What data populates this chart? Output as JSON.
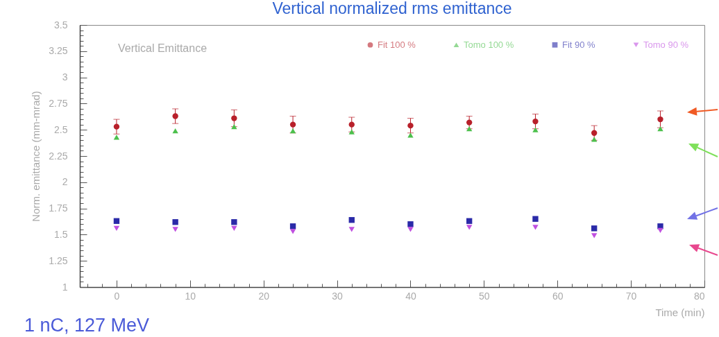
{
  "chart_data": {
    "type": "scatter",
    "title": "Vertical normalized rms emittance",
    "xlabel": "Time (min)",
    "ylabel": "Norm. emittance (mm-mrad)",
    "annotations": [
      "Vertical Emittance",
      "1 nC, 127 MeV"
    ],
    "x": [
      0,
      8,
      16,
      24,
      32,
      40,
      48,
      57,
      65,
      74
    ],
    "series": [
      {
        "name": "Fit 100 %",
        "color": "#b8202a",
        "marker": "circle",
        "values": [
          2.53,
          2.63,
          2.61,
          2.55,
          2.55,
          2.54,
          2.57,
          2.58,
          2.47,
          2.6
        ],
        "errors": [
          0.07,
          0.07,
          0.08,
          0.08,
          0.07,
          0.07,
          0.06,
          0.07,
          0.07,
          0.08
        ]
      },
      {
        "name": "Tomo 100 %",
        "color": "#4cc04c",
        "marker": "triangle",
        "values": [
          2.43,
          2.49,
          2.53,
          2.49,
          2.48,
          2.45,
          2.51,
          2.5,
          2.41,
          2.51
        ]
      },
      {
        "name": "Fit 90 %",
        "color": "#2a2aa8",
        "marker": "square",
        "values": [
          1.63,
          1.62,
          1.62,
          1.58,
          1.64,
          1.6,
          1.63,
          1.65,
          1.56,
          1.58
        ]
      },
      {
        "name": "Tomo 90 %",
        "color": "#c050e0",
        "marker": "triangle-down",
        "values": [
          1.56,
          1.55,
          1.56,
          1.53,
          1.55,
          1.55,
          1.57,
          1.57,
          1.49,
          1.54
        ]
      }
    ],
    "xlim": [
      -5,
      80
    ],
    "xticks": [
      {
        "value": -4,
        "label": null
      },
      {
        "value": -2,
        "label": null
      },
      0,
      {
        "value": 2,
        "label": null
      },
      {
        "value": 4,
        "label": null
      },
      {
        "value": 6,
        "label": null
      },
      {
        "value": 8,
        "label": null
      },
      10,
      {
        "value": 12,
        "label": null
      },
      {
        "value": 14,
        "label": null
      },
      {
        "value": 16,
        "label": null
      },
      {
        "value": 18,
        "label": null
      },
      20,
      {
        "value": 22,
        "label": null
      },
      {
        "value": 24,
        "label": null
      },
      {
        "value": 26,
        "label": null
      },
      {
        "value": 28,
        "label": null
      },
      30,
      {
        "value": 32,
        "label": null
      },
      {
        "value": 34,
        "label": null
      },
      {
        "value": 36,
        "label": null
      },
      {
        "value": 38,
        "label": null
      },
      40,
      {
        "value": 42,
        "label": null
      },
      {
        "value": 44,
        "label": null
      },
      {
        "value": 46,
        "label": null
      },
      {
        "value": 48,
        "label": null
      },
      50,
      {
        "value": 52,
        "label": null
      },
      {
        "value": 54,
        "label": null
      },
      {
        "value": 56,
        "label": null
      },
      {
        "value": 58,
        "label": null
      },
      60,
      {
        "value": 62,
        "label": null
      },
      {
        "value": 64,
        "label": null
      },
      {
        "value": 66,
        "label": null
      },
      {
        "value": 68,
        "label": null
      },
      70,
      {
        "value": 72,
        "label": null
      },
      {
        "value": 74,
        "label": null
      },
      {
        "value": 76,
        "label": null
      },
      {
        "value": 78,
        "label": null
      },
      80
    ],
    "ylim": [
      1,
      3.5
    ],
    "yticks": [
      1,
      {
        "value": 1.05,
        "label": null
      },
      {
        "value": 1.1,
        "label": null
      },
      {
        "value": 1.15,
        "label": null
      },
      {
        "value": 1.2,
        "label": null
      },
      1.25,
      {
        "value": 1.3,
        "label": null
      },
      {
        "value": 1.35,
        "label": null
      },
      {
        "value": 1.4,
        "label": null
      },
      {
        "value": 1.45,
        "label": null
      },
      1.5,
      {
        "value": 1.55,
        "label": null
      },
      {
        "value": 1.6,
        "label": null
      },
      {
        "value": 1.65,
        "label": null
      },
      {
        "value": 1.7,
        "label": null
      },
      1.75,
      {
        "value": 1.8,
        "label": null
      },
      {
        "value": 1.85,
        "label": null
      },
      {
        "value": 1.9,
        "label": null
      },
      {
        "value": 1.95,
        "label": null
      },
      2,
      {
        "value": 2.05,
        "label": null
      },
      {
        "value": 2.1,
        "label": null
      },
      {
        "value": 2.15,
        "label": null
      },
      {
        "value": 2.2,
        "label": null
      },
      2.25,
      {
        "value": 2.3,
        "label": null
      },
      {
        "value": 2.35,
        "label": null
      },
      {
        "value": 2.4,
        "label": null
      },
      {
        "value": 2.45,
        "label": null
      },
      2.5,
      {
        "value": 2.55,
        "label": null
      },
      {
        "value": 2.6,
        "label": null
      },
      {
        "value": 2.65,
        "label": null
      },
      {
        "value": 2.7,
        "label": null
      },
      2.75,
      {
        "value": 2.8,
        "label": null
      },
      {
        "value": 2.85,
        "label": null
      },
      {
        "value": 2.9,
        "label": null
      },
      {
        "value": 2.95,
        "label": null
      },
      3,
      {
        "value": 3.05,
        "label": null
      },
      {
        "value": 3.1,
        "label": null
      },
      {
        "value": 3.15,
        "label": null
      },
      {
        "value": 3.2,
        "label": null
      },
      3.25,
      {
        "value": 3.3,
        "label": null
      },
      {
        "value": 3.35,
        "label": null
      },
      {
        "value": 3.4,
        "label": null
      },
      {
        "value": 3.45,
        "label": null
      },
      3.5
    ],
    "legend": "top right"
  }
}
